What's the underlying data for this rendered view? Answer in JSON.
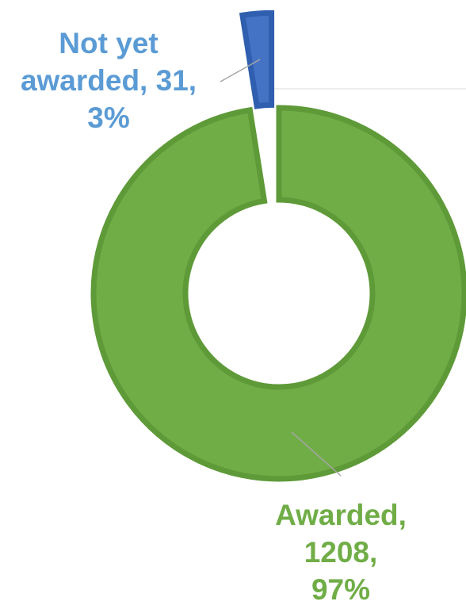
{
  "chart_data": {
    "type": "donut",
    "data_labels": [
      [
        "Awarded,",
        "1208,",
        "97%"
      ],
      [
        "Not yet",
        "awarded, 31,",
        "3%"
      ]
    ],
    "values": [
      1208,
      31
    ],
    "colors": [
      "#70ad47",
      "#4472c4"
    ],
    "label_colors": [
      "#70ad47",
      "#5b9bd5"
    ]
  }
}
